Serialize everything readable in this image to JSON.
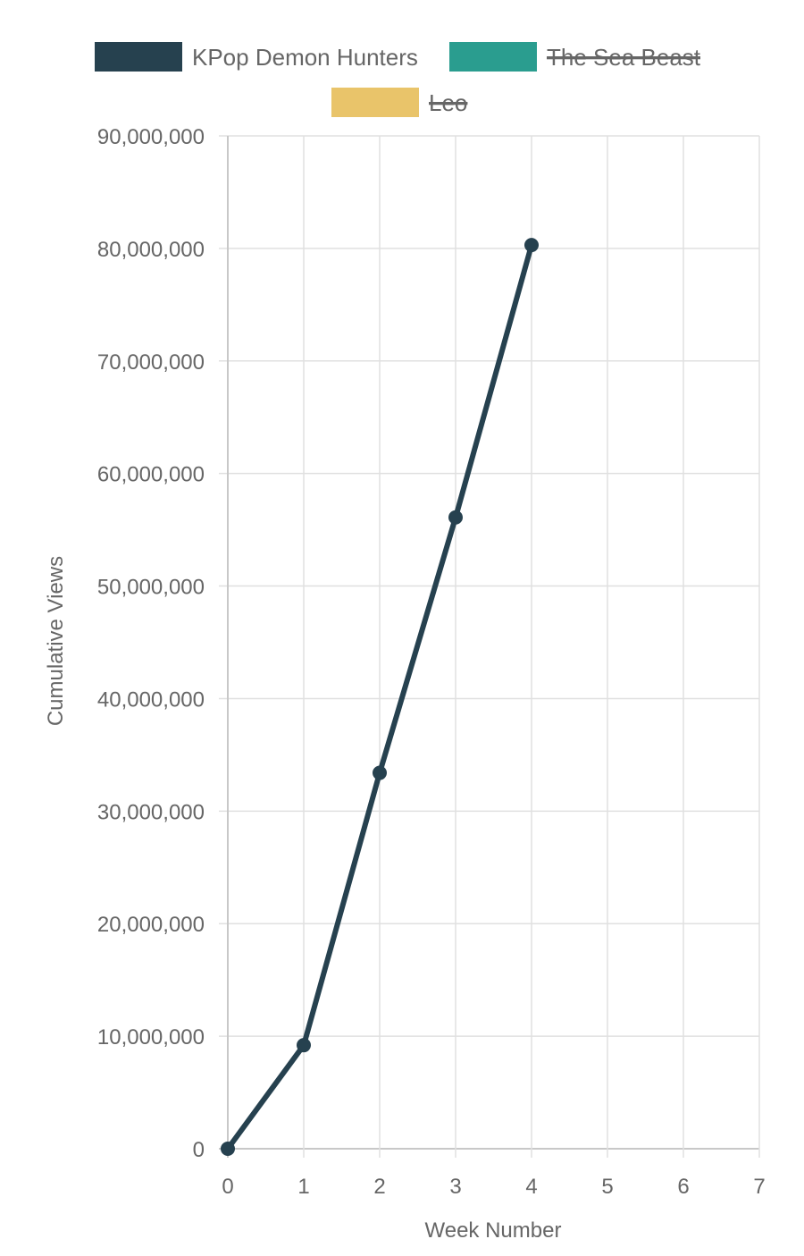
{
  "chart_data": {
    "type": "line",
    "title": "",
    "xlabel": "Week Number",
    "ylabel": "Cumulative Views",
    "x_ticks": [
      "0",
      "1",
      "2",
      "3",
      "4",
      "5",
      "6",
      "7"
    ],
    "y_ticks": [
      "0",
      "10,000,000",
      "20,000,000",
      "30,000,000",
      "40,000,000",
      "50,000,000",
      "60,000,000",
      "70,000,000",
      "80,000,000",
      "90,000,000"
    ],
    "xlim": [
      0,
      7
    ],
    "ylim": [
      0,
      90000000
    ],
    "grid": true,
    "legend_position": "top",
    "series": [
      {
        "name": "KPop Demon Hunters",
        "color": "#26414f",
        "hidden": false,
        "x": [
          0,
          1,
          2,
          3,
          4
        ],
        "values": [
          0,
          9200000,
          33400000,
          56100000,
          80300000
        ]
      },
      {
        "name": "The Sea Beast",
        "color": "#2a9d8f",
        "hidden": true,
        "x": [],
        "values": []
      },
      {
        "name": "Leo",
        "color": "#e9c46a",
        "hidden": true,
        "x": [],
        "values": []
      }
    ]
  }
}
